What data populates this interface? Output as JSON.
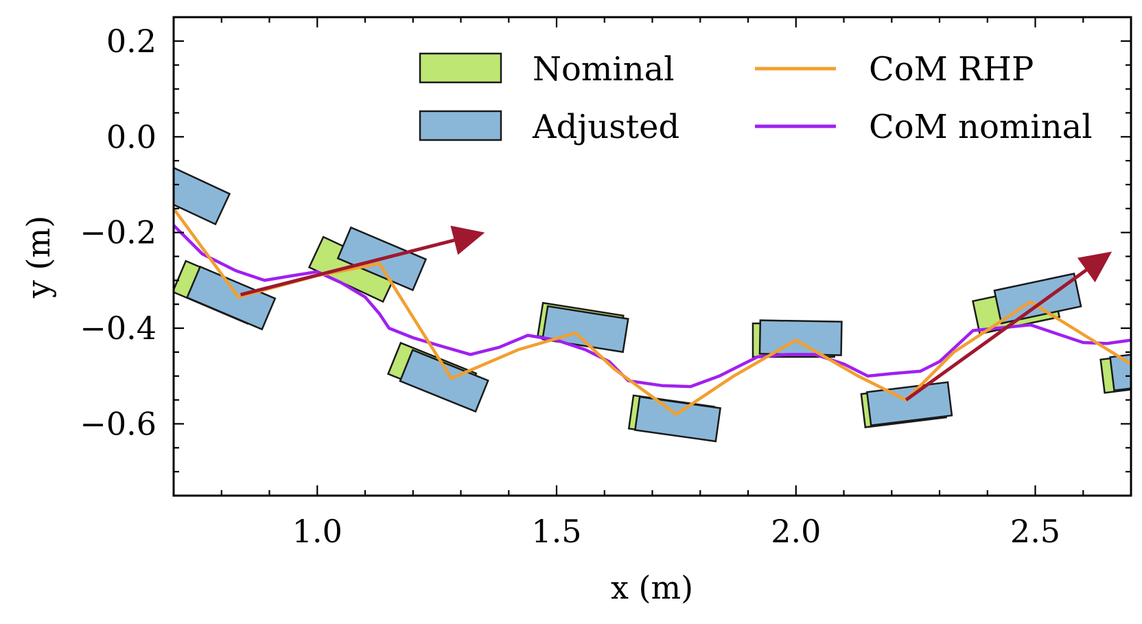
{
  "chart_data": {
    "type": "line",
    "title": "",
    "xlabel": "x (m)",
    "ylabel": "y (m)",
    "xlim": [
      0.7,
      2.7
    ],
    "ylim": [
      -0.75,
      0.25
    ],
    "xticks": [
      {
        "value": 1.0,
        "label": "1.0"
      },
      {
        "value": 1.5,
        "label": "1.5"
      },
      {
        "value": 2.0,
        "label": "2.0"
      },
      {
        "value": 2.5,
        "label": "2.5"
      }
    ],
    "yticks": [
      {
        "value": 0.2,
        "label": "0.2"
      },
      {
        "value": 0.0,
        "label": "0.0"
      },
      {
        "value": -0.2,
        "label": "−0.2"
      },
      {
        "value": -0.4,
        "label": "−0.4"
      },
      {
        "value": -0.6,
        "label": "−0.6"
      }
    ],
    "xminor_step": 0.1,
    "yminor_step": 0.05,
    "legend": {
      "position": "top-right",
      "entries": [
        {
          "label": "Nominal",
          "kind": "patch",
          "color": "#bde673"
        },
        {
          "label": "Adjusted",
          "kind": "patch",
          "color": "#8ab7d8"
        },
        {
          "label": "CoM RHP",
          "kind": "line",
          "color": "#f29f30"
        },
        {
          "label": "CoM nominal",
          "kind": "line",
          "color": "#a020f0"
        }
      ]
    },
    "series": [
      {
        "name": "CoM nominal",
        "color": "#a020f0",
        "points": [
          [
            0.7,
            -0.185
          ],
          [
            0.76,
            -0.245
          ],
          [
            0.83,
            -0.28
          ],
          [
            0.89,
            -0.3
          ],
          [
            0.95,
            -0.29
          ],
          [
            1.0,
            -0.282
          ],
          [
            1.05,
            -0.305
          ],
          [
            1.1,
            -0.335
          ],
          [
            1.13,
            -0.37
          ],
          [
            1.15,
            -0.4
          ],
          [
            1.2,
            -0.42
          ],
          [
            1.25,
            -0.435
          ],
          [
            1.32,
            -0.455
          ],
          [
            1.38,
            -0.44
          ],
          [
            1.44,
            -0.415
          ],
          [
            1.5,
            -0.425
          ],
          [
            1.56,
            -0.445
          ],
          [
            1.61,
            -0.47
          ],
          [
            1.65,
            -0.51
          ],
          [
            1.72,
            -0.52
          ],
          [
            1.78,
            -0.522
          ],
          [
            1.84,
            -0.5
          ],
          [
            1.88,
            -0.48
          ],
          [
            1.92,
            -0.46
          ],
          [
            1.98,
            -0.455
          ],
          [
            2.04,
            -0.455
          ],
          [
            2.1,
            -0.475
          ],
          [
            2.15,
            -0.5
          ],
          [
            2.2,
            -0.495
          ],
          [
            2.26,
            -0.49
          ],
          [
            2.3,
            -0.47
          ],
          [
            2.37,
            -0.405
          ],
          [
            2.44,
            -0.398
          ],
          [
            2.49,
            -0.393
          ],
          [
            2.54,
            -0.41
          ],
          [
            2.6,
            -0.43
          ],
          [
            2.65,
            -0.432
          ],
          [
            2.7,
            -0.425
          ]
        ]
      },
      {
        "name": "CoM RHP",
        "color": "#f29f30",
        "points": [
          [
            0.7,
            -0.15
          ],
          [
            0.835,
            -0.335
          ],
          [
            1.0,
            -0.29
          ],
          [
            1.13,
            -0.265
          ],
          [
            1.28,
            -0.505
          ],
          [
            1.42,
            -0.445
          ],
          [
            1.54,
            -0.41
          ],
          [
            1.62,
            -0.485
          ],
          [
            1.75,
            -0.58
          ],
          [
            1.87,
            -0.5
          ],
          [
            2.0,
            -0.425
          ],
          [
            2.13,
            -0.5
          ],
          [
            2.23,
            -0.55
          ],
          [
            2.33,
            -0.45
          ],
          [
            2.49,
            -0.345
          ],
          [
            2.7,
            -0.475
          ]
        ]
      }
    ],
    "footsteps": [
      {
        "set": "Adjusted",
        "x": 0.725,
        "y": -0.115,
        "angle_deg": -25
      },
      {
        "set": "Nominal",
        "x": 0.79,
        "y": -0.325,
        "angle_deg": -23
      },
      {
        "set": "Adjusted",
        "x": 0.82,
        "y": -0.337,
        "angle_deg": -23
      },
      {
        "set": "Nominal",
        "x": 1.075,
        "y": -0.277,
        "angle_deg": -25
      },
      {
        "set": "Adjusted",
        "x": 1.135,
        "y": -0.255,
        "angle_deg": -23
      },
      {
        "set": "Nominal",
        "x": 1.24,
        "y": -0.495,
        "angle_deg": -22
      },
      {
        "set": "Adjusted",
        "x": 1.265,
        "y": -0.51,
        "angle_deg": -22
      },
      {
        "set": "Nominal",
        "x": 1.55,
        "y": -0.395,
        "angle_deg": -9
      },
      {
        "set": "Adjusted",
        "x": 1.56,
        "y": -0.402,
        "angle_deg": -9
      },
      {
        "set": "Nominal",
        "x": 1.74,
        "y": -0.587,
        "angle_deg": -8
      },
      {
        "set": "Adjusted",
        "x": 1.753,
        "y": -0.59,
        "angle_deg": -8
      },
      {
        "set": "Nominal",
        "x": 1.995,
        "y": -0.425,
        "angle_deg": 0
      },
      {
        "set": "Adjusted",
        "x": 2.01,
        "y": -0.42,
        "angle_deg": -1
      },
      {
        "set": "Nominal",
        "x": 2.225,
        "y": -0.562,
        "angle_deg": 7
      },
      {
        "set": "Adjusted",
        "x": 2.237,
        "y": -0.558,
        "angle_deg": 7
      },
      {
        "set": "Nominal",
        "x": 2.46,
        "y": -0.36,
        "angle_deg": 12
      },
      {
        "set": "Adjusted",
        "x": 2.505,
        "y": -0.338,
        "angle_deg": 12
      },
      {
        "set": "Nominal",
        "x": 2.725,
        "y": -0.49,
        "angle_deg": 7
      },
      {
        "set": "Adjusted",
        "x": 2.745,
        "y": -0.485,
        "angle_deg": 7
      }
    ],
    "arrows": [
      {
        "from": [
          0.84,
          -0.33
        ],
        "to": [
          1.35,
          -0.2
        ],
        "color": "#a0182e"
      },
      {
        "from": [
          2.23,
          -0.55
        ],
        "to": [
          2.66,
          -0.24
        ],
        "color": "#a0182e"
      }
    ],
    "footstep_length_m": 0.17,
    "footstep_width_m": 0.07
  }
}
